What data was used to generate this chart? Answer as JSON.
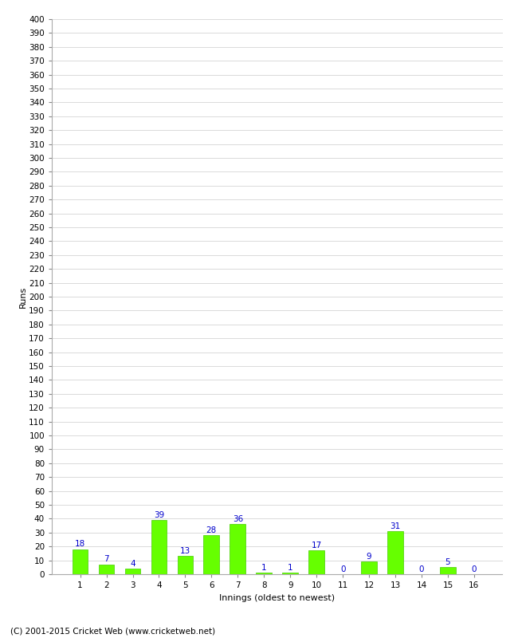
{
  "innings": [
    1,
    2,
    3,
    4,
    5,
    6,
    7,
    8,
    9,
    10,
    11,
    12,
    13,
    14,
    15,
    16
  ],
  "runs": [
    18,
    7,
    4,
    39,
    13,
    28,
    36,
    1,
    1,
    17,
    0,
    9,
    31,
    0,
    5,
    0
  ],
  "bar_color": "#66ff00",
  "bar_edge_color": "#44cc00",
  "label_color": "#0000cc",
  "xlabel": "Innings (oldest to newest)",
  "ylabel": "Runs",
  "ylim_min": 0,
  "ylim_max": 400,
  "ytick_step": 10,
  "background_color": "#ffffff",
  "grid_color": "#cccccc",
  "footer": "(C) 2001-2015 Cricket Web (www.cricketweb.net)",
  "label_fontsize": 7.5,
  "axis_fontsize": 7.5,
  "ylabel_fontsize": 8,
  "xlabel_fontsize": 8,
  "footer_fontsize": 7.5
}
